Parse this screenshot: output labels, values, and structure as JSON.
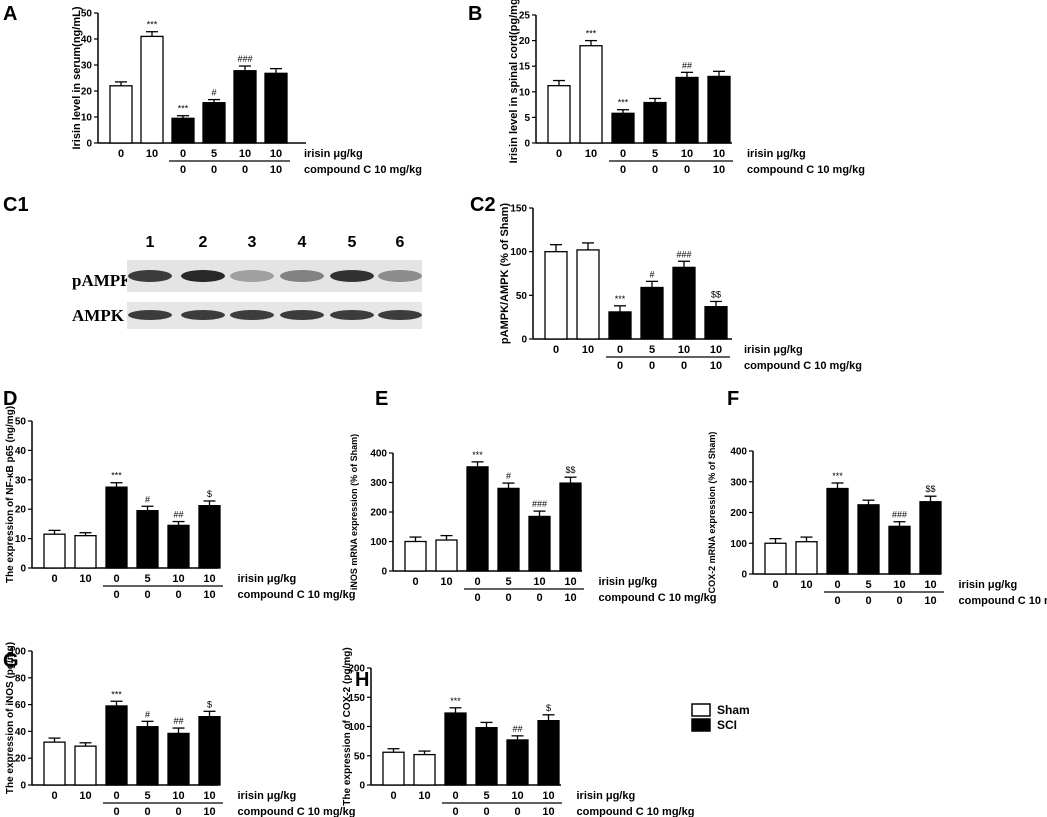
{
  "axis_rows": {
    "irisin_label": "irisin μg/kg",
    "compound_label": "compound C 10 mg/kg",
    "irisin_values": [
      "0",
      "10",
      "0",
      "5",
      "10",
      "10"
    ],
    "compound_values": [
      "0",
      "0",
      "0",
      "10"
    ]
  },
  "legend": [
    {
      "label": "Sham",
      "color": "#ffffff"
    },
    {
      "label": "SCI",
      "color": "#000000"
    }
  ],
  "colors": {
    "sham": "#ffffff",
    "sci": "#000000",
    "axis": "#000000"
  },
  "blot": {
    "panel_label": "C1",
    "lanes": [
      "1",
      "2",
      "3",
      "4",
      "5",
      "6"
    ],
    "rows": [
      {
        "label": "pAMPK",
        "intensities": [
          0.85,
          0.95,
          0.35,
          0.5,
          0.9,
          0.45
        ]
      },
      {
        "label": "AMPK",
        "intensities": [
          0.85,
          0.85,
          0.85,
          0.85,
          0.85,
          0.85
        ]
      }
    ]
  },
  "chart_data": [
    {
      "panel": "A",
      "type": "bar",
      "ylabel": "Irisin level in serum(ng/mL)",
      "ylim": [
        0,
        50
      ],
      "yticks": [
        0,
        10,
        20,
        30,
        40,
        50
      ],
      "values": [
        22,
        41,
        9.5,
        15.5,
        27.8,
        26.8
      ],
      "errors": [
        1.5,
        1.8,
        1,
        1.2,
        1.8,
        1.8
      ],
      "groups": [
        "sham",
        "sham",
        "sci",
        "sci",
        "sci",
        "sci"
      ],
      "annotations": [
        "",
        "***",
        "***",
        "#",
        "###",
        ""
      ]
    },
    {
      "panel": "B",
      "type": "bar",
      "ylabel": "Irisin level in spinal cord(pg/mg)",
      "ylim": [
        0,
        25
      ],
      "yticks": [
        0,
        5,
        10,
        15,
        20,
        25
      ],
      "values": [
        11.2,
        19,
        5.8,
        7.9,
        12.8,
        13
      ],
      "errors": [
        1,
        1,
        0.7,
        0.8,
        1,
        1
      ],
      "groups": [
        "sham",
        "sham",
        "sci",
        "sci",
        "sci",
        "sci"
      ],
      "annotations": [
        "",
        "***",
        "***",
        "",
        "##",
        ""
      ]
    },
    {
      "panel": "C2",
      "type": "bar",
      "ylabel": "pAMPK/AMPK (% of Sham)",
      "ylim": [
        0,
        150
      ],
      "yticks": [
        0,
        50,
        100,
        150
      ],
      "values": [
        100,
        102,
        31,
        59,
        82,
        37
      ],
      "errors": [
        8,
        8,
        7,
        7,
        7,
        6
      ],
      "groups": [
        "sham",
        "sham",
        "sci",
        "sci",
        "sci",
        "sci"
      ],
      "annotations": [
        "",
        "",
        "***",
        "#",
        "###",
        "$$"
      ]
    },
    {
      "panel": "D",
      "type": "bar",
      "ylabel": "The expression of NF-κB p65 (ng/mg)",
      "ylim": [
        0,
        50
      ],
      "yticks": [
        0,
        10,
        20,
        30,
        40,
        50
      ],
      "values": [
        11.5,
        11,
        27.5,
        19.5,
        14.5,
        21.2
      ],
      "errors": [
        1.3,
        1,
        1.5,
        1.5,
        1.3,
        1.6
      ],
      "groups": [
        "sham",
        "sham",
        "sci",
        "sci",
        "sci",
        "sci"
      ],
      "annotations": [
        "",
        "",
        "***",
        "#",
        "##",
        "$"
      ]
    },
    {
      "panel": "E",
      "type": "bar",
      "ylabel": "iNOS mRNA expression (% of Sham)",
      "ylim": [
        0,
        400
      ],
      "yticks": [
        0,
        100,
        200,
        300,
        400
      ],
      "values": [
        100,
        105,
        353,
        280,
        185,
        298
      ],
      "errors": [
        15,
        15,
        17,
        18,
        18,
        20
      ],
      "groups": [
        "sham",
        "sham",
        "sci",
        "sci",
        "sci",
        "sci"
      ],
      "annotations": [
        "",
        "",
        "***",
        "#",
        "###",
        "$$"
      ]
    },
    {
      "panel": "F",
      "type": "bar",
      "ylabel": "COX-2 mRNA expression (% of Sham)",
      "ylim": [
        0,
        400
      ],
      "yticks": [
        0,
        100,
        200,
        300,
        400
      ],
      "values": [
        100,
        105,
        278,
        225,
        155,
        235
      ],
      "errors": [
        15,
        15,
        18,
        15,
        15,
        18
      ],
      "groups": [
        "sham",
        "sham",
        "sci",
        "sci",
        "sci",
        "sci"
      ],
      "annotations": [
        "",
        "",
        "***",
        "",
        "###",
        "$$"
      ]
    },
    {
      "panel": "G",
      "type": "bar",
      "ylabel": "The expression of iNOS (pg/mg)",
      "ylim": [
        0,
        100
      ],
      "yticks": [
        0,
        20,
        40,
        60,
        80,
        100
      ],
      "values": [
        32,
        29,
        59,
        43.5,
        38.5,
        51
      ],
      "errors": [
        3,
        2.5,
        3.5,
        4,
        4,
        4
      ],
      "groups": [
        "sham",
        "sham",
        "sci",
        "sci",
        "sci",
        "sci"
      ],
      "annotations": [
        "",
        "",
        "***",
        "#",
        "##",
        "$"
      ]
    },
    {
      "panel": "H",
      "type": "bar",
      "ylabel": "The expression of COX-2 (pg/mg)",
      "ylim": [
        0,
        200
      ],
      "yticks": [
        0,
        50,
        100,
        150,
        200
      ],
      "values": [
        56,
        52,
        123,
        98,
        77,
        110
      ],
      "errors": [
        6,
        6,
        9,
        9,
        7,
        10
      ],
      "groups": [
        "sham",
        "sham",
        "sci",
        "sci",
        "sci",
        "sci"
      ],
      "annotations": [
        "",
        "",
        "***",
        "",
        "##",
        "$"
      ]
    }
  ]
}
